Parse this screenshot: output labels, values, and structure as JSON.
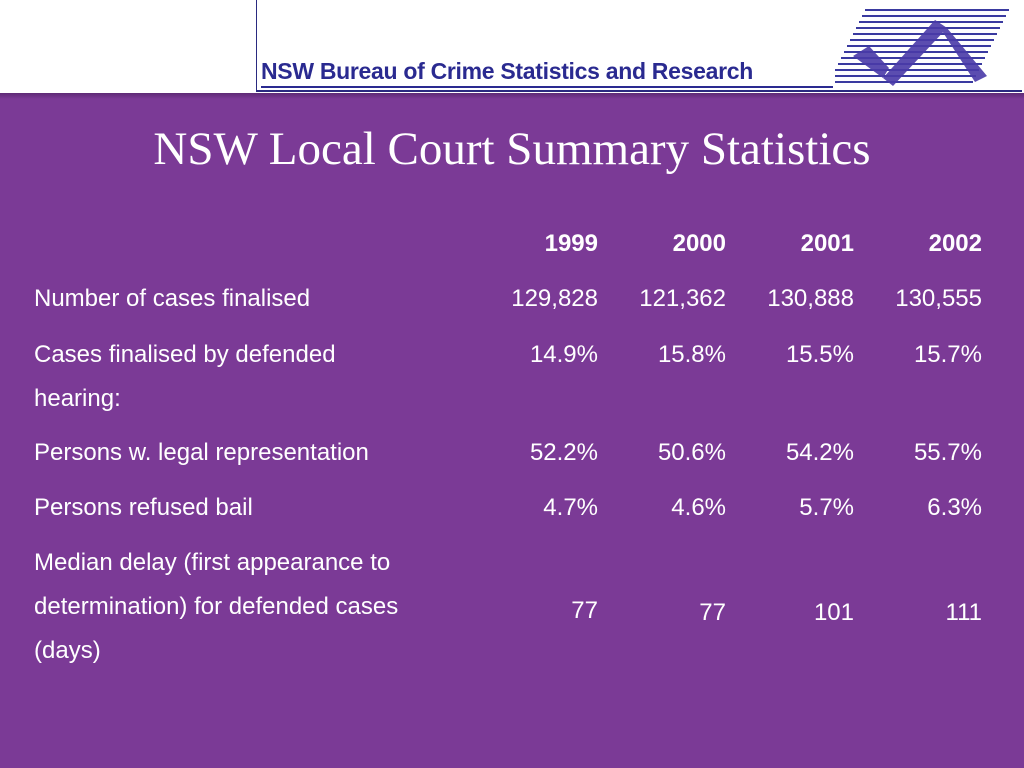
{
  "header": {
    "org_name": "NSW Bureau of Crime Statistics and Research",
    "logo_icon": "checkmark-stripes-logo",
    "brand_color": "#2a2a90"
  },
  "slide": {
    "title": "NSW Local Court Summary Statistics",
    "background_color": "#7b3a96"
  },
  "table": {
    "columns": [
      "1999",
      "2000",
      "2001",
      "2002"
    ],
    "rows": [
      {
        "label": "Number of cases finalised",
        "values": [
          "129,828",
          "121,362",
          "130,888",
          "130,555"
        ]
      },
      {
        "label": "Cases finalised by defended hearing:",
        "values": [
          "14.9%",
          "15.8%",
          "15.5%",
          "15.7%"
        ]
      },
      {
        "label": "Persons w. legal representation",
        "values": [
          "52.2%",
          "50.6%",
          "54.2%",
          "55.7%"
        ]
      },
      {
        "label": "Persons refused bail",
        "values": [
          "4.7%",
          "4.6%",
          "5.7%",
          "6.3%"
        ]
      },
      {
        "label": "Median delay (first appearance to determination) for defended cases (days)",
        "values": [
          "77",
          "77",
          "101",
          "111"
        ]
      }
    ]
  }
}
